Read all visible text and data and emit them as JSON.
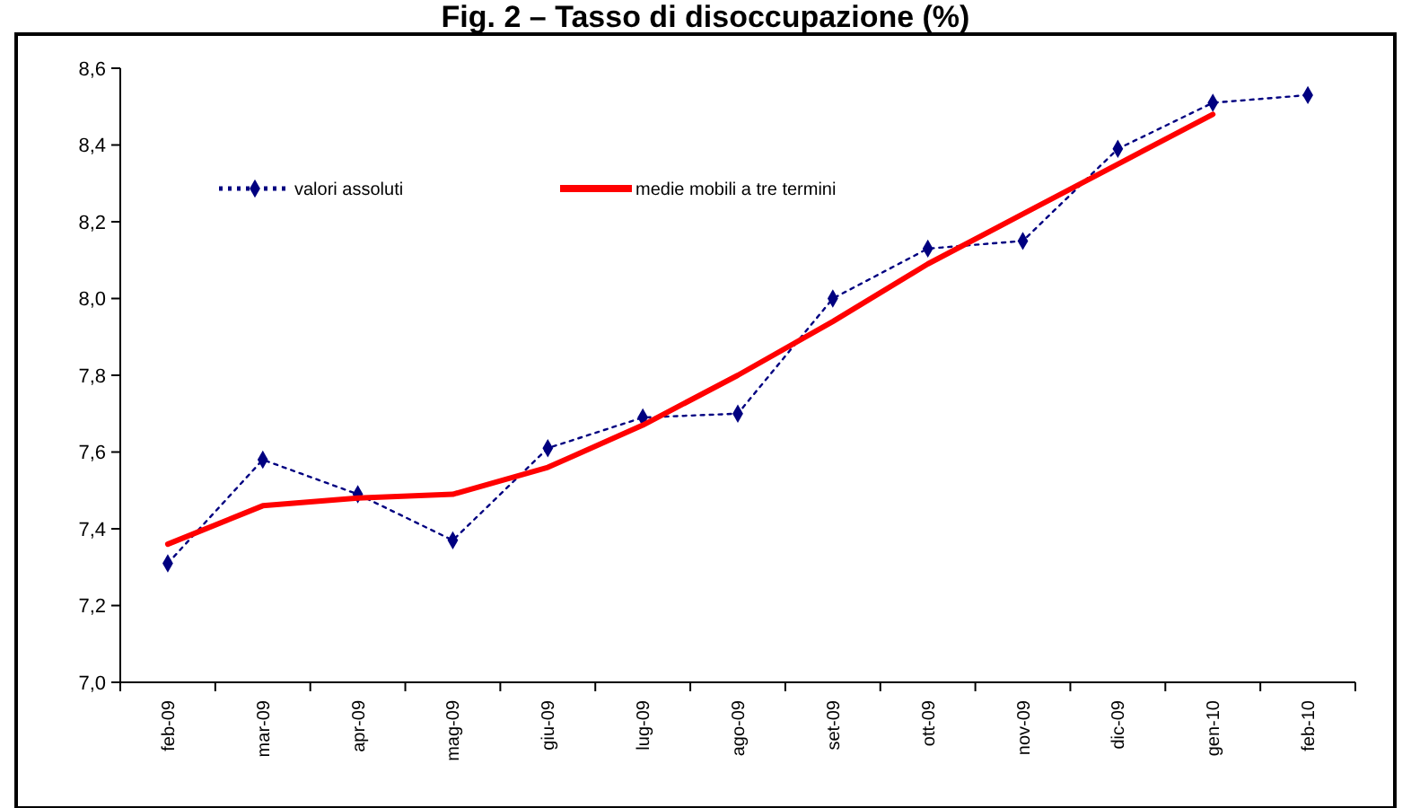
{
  "chart_data": {
    "type": "line",
    "title": "Fig. 2 – Tasso di disoccupazione (%)",
    "categories": [
      "feb-09",
      "mar-09",
      "apr-09",
      "mag-09",
      "giu-09",
      "lug-09",
      "ago-09",
      "set-09",
      "ott-09",
      "nov-09",
      "dic-09",
      "gen-10",
      "feb-10"
    ],
    "series": [
      {
        "name": "valori assoluti",
        "color": "#000080",
        "marker": "diamond",
        "line_style": "dotted",
        "values": [
          7.31,
          7.58,
          7.49,
          7.37,
          7.61,
          7.69,
          7.7,
          8.0,
          8.13,
          8.15,
          8.39,
          8.51,
          8.53
        ]
      },
      {
        "name": "medie mobili a tre termini",
        "color": "#ff0000",
        "marker": "none",
        "line_style": "solid",
        "values": [
          7.36,
          7.46,
          7.48,
          7.49,
          7.56,
          7.67,
          7.8,
          7.94,
          8.09,
          8.22,
          8.35,
          8.48,
          null
        ]
      }
    ],
    "ylim": [
      7.0,
      8.6
    ],
    "yticks": [
      {
        "value": 7.0,
        "label": "7,0"
      },
      {
        "value": 7.2,
        "label": "7,2"
      },
      {
        "value": 7.4,
        "label": "7,4"
      },
      {
        "value": 7.6,
        "label": "7,6"
      },
      {
        "value": 7.8,
        "label": "7,8"
      },
      {
        "value": 8.0,
        "label": "8,0"
      },
      {
        "value": 8.2,
        "label": "8,2"
      },
      {
        "value": 8.4,
        "label": "8,4"
      },
      {
        "value": 8.6,
        "label": "8,6"
      }
    ],
    "grid": false,
    "legend": "top left"
  }
}
